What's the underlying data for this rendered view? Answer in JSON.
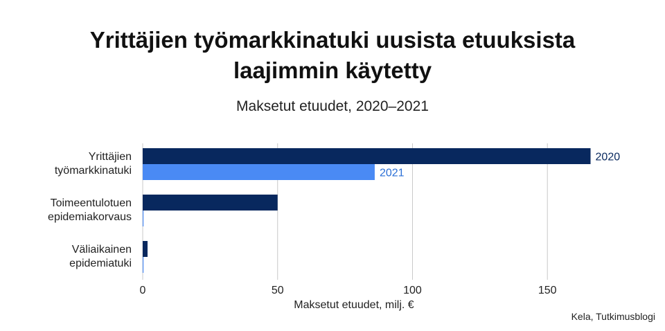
{
  "title_lines": [
    "Yrittäjien työmarkkinatuki uusista etuuksista",
    "laajimmin käytetty"
  ],
  "subtitle": "Maksetut etuudet, 2020–2021",
  "source": "Kela, Tutkimusblogi",
  "chart_data": {
    "type": "bar",
    "orientation": "horizontal",
    "categories": [
      [
        "Yrittäjien",
        "työmarkkinatuki"
      ],
      [
        "Toimeentulotuen",
        "epidemiakorvaus"
      ],
      [
        "Väliaikainen",
        "epidemiatuki"
      ]
    ],
    "series": [
      {
        "name": "2020",
        "color": "#08285e",
        "values": [
          166,
          50,
          1.8
        ]
      },
      {
        "name": "2021",
        "color": "#4a8af4",
        "values": [
          86,
          0.3,
          0.3
        ]
      }
    ],
    "direct_labels_on_category": 0,
    "xlabel": "Maksetut etuudet, milj. €",
    "xlim": [
      0,
      190
    ],
    "xticks": [
      0,
      50,
      100,
      150
    ],
    "grid": "vertical",
    "legend": "none"
  }
}
